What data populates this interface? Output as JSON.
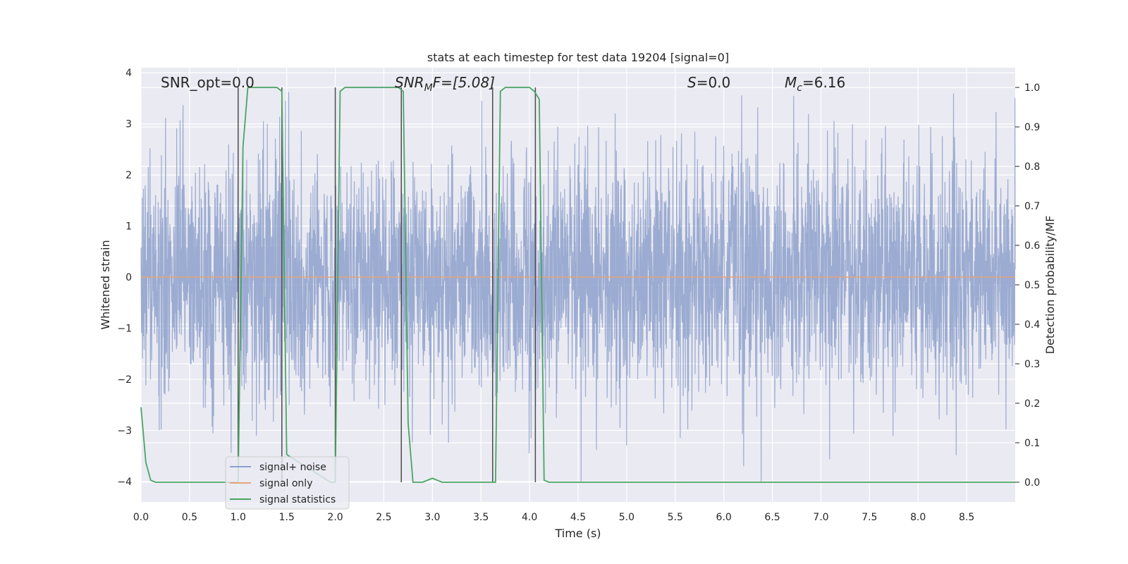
{
  "chart_data": {
    "type": "line",
    "title": "stats at each timestep for test data 19204 [signal=0]",
    "xlabel": "Time (s)",
    "ylabel_left": "Whitened strain",
    "ylabel_right": "Detection probability/MF",
    "xlim": [
      0.0,
      9.0
    ],
    "ylim_left": [
      -4.4,
      4.1
    ],
    "ylim_right": [
      -0.05,
      1.05
    ],
    "x_ticks": [
      "0.0",
      "0.5",
      "1.0",
      "1.5",
      "2.0",
      "2.5",
      "3.0",
      "3.5",
      "4.0",
      "4.5",
      "5.0",
      "5.5",
      "6.0",
      "6.5",
      "7.0",
      "7.5",
      "8.0",
      "8.5"
    ],
    "y_ticks_left": [
      "4",
      "3",
      "2",
      "1",
      "0",
      "−1",
      "−2",
      "−3",
      "−4"
    ],
    "y_ticks_right": [
      "1.0",
      "0.9",
      "0.8",
      "0.7",
      "0.6",
      "0.5",
      "0.4",
      "0.3",
      "0.2",
      "0.1",
      "0.0"
    ],
    "grid": true,
    "legend_position": "lower-left",
    "annotations": {
      "snr_opt": "SNR_opt=0.0",
      "snr_mf_main": "SNR",
      "snr_mf_sub": "M",
      "snr_mf_tail": "F=[5.08]",
      "s_main": "S",
      "s_tail": "=0.0",
      "mc_main": "M",
      "mc_sub": "c",
      "mc_tail": "=6.16"
    },
    "series": [
      {
        "name": "signal+ noise",
        "axis": "left",
        "color": "#8da0cb",
        "description_stats": {
          "mean": 0.0,
          "std": 1.0,
          "max": 3.8,
          "min": -4.0
        }
      },
      {
        "name": "signal only",
        "axis": "left",
        "color": "#e5a47a",
        "x": [
          0.0,
          9.0
        ],
        "y": [
          0.0,
          0.0
        ]
      },
      {
        "name": "signal statistics",
        "axis": "right",
        "color": "#4aa564",
        "x": [
          0.0,
          0.05,
          0.1,
          0.15,
          0.95,
          1.0,
          1.05,
          1.1,
          1.4,
          1.45,
          1.5,
          1.95,
          2.0,
          2.05,
          2.1,
          2.6,
          2.65,
          2.7,
          2.75,
          2.8,
          2.9,
          3.0,
          3.05,
          3.1,
          3.6,
          3.65,
          3.7,
          3.75,
          3.8,
          4.0,
          4.05,
          4.1,
          4.15,
          4.2,
          9.0
        ],
        "y": [
          0.19,
          0.05,
          0.005,
          0.0,
          0.0,
          0.0,
          0.85,
          1.0,
          1.0,
          0.99,
          0.07,
          0.0,
          0.0,
          0.99,
          1.0,
          1.0,
          1.0,
          0.99,
          0.15,
          0.0,
          0.0,
          0.01,
          0.005,
          0.0,
          0.0,
          0.0,
          0.99,
          1.0,
          1.0,
          1.0,
          0.99,
          0.97,
          0.005,
          0.0,
          0.0
        ]
      }
    ],
    "vertical_markers": [
      1.0,
      1.45,
      2.0,
      2.68,
      3.62,
      4.06
    ]
  }
}
